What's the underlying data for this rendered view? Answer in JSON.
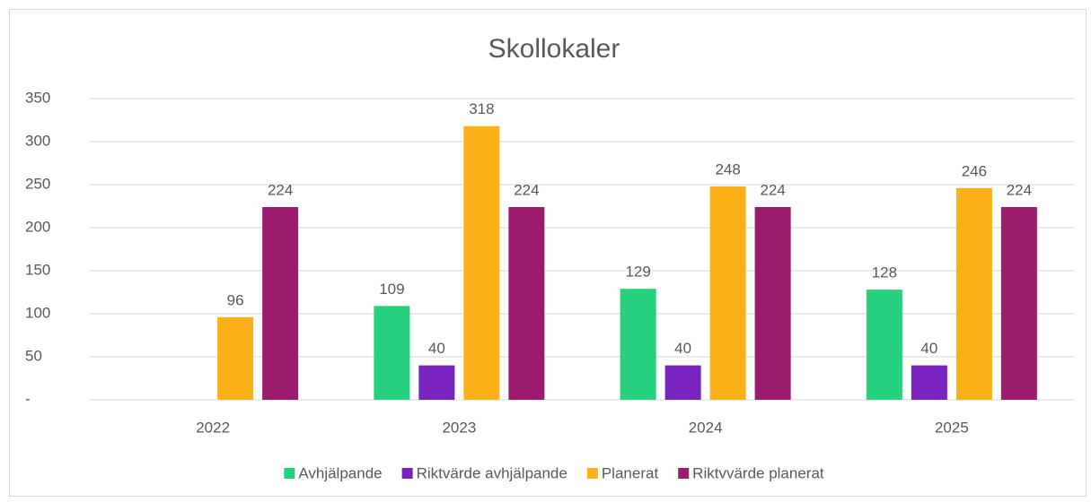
{
  "chart_data": {
    "type": "bar",
    "title": "Skollokaler",
    "categories": [
      "2022",
      "2023",
      "2024",
      "2025"
    ],
    "series": [
      {
        "name": "Avhjälpande",
        "color": "#26d07c",
        "values": [
          null,
          109,
          129,
          128
        ]
      },
      {
        "name": "Riktvärde avhjälpande",
        "color": "#7a24c0",
        "values": [
          null,
          40,
          40,
          40
        ]
      },
      {
        "name": "Planerat",
        "color": "#fbb117",
        "values": [
          96,
          318,
          248,
          246
        ]
      },
      {
        "name": "Riktvvärde planerat",
        "color": "#9b1b6e",
        "values": [
          224,
          224,
          224,
          224
        ]
      }
    ],
    "ylim": [
      0,
      350
    ],
    "yticks": [
      {
        "value": 0,
        "label": "-"
      },
      50,
      100,
      150,
      200,
      250,
      300,
      350
    ],
    "grid": true,
    "legend": "bottom"
  }
}
